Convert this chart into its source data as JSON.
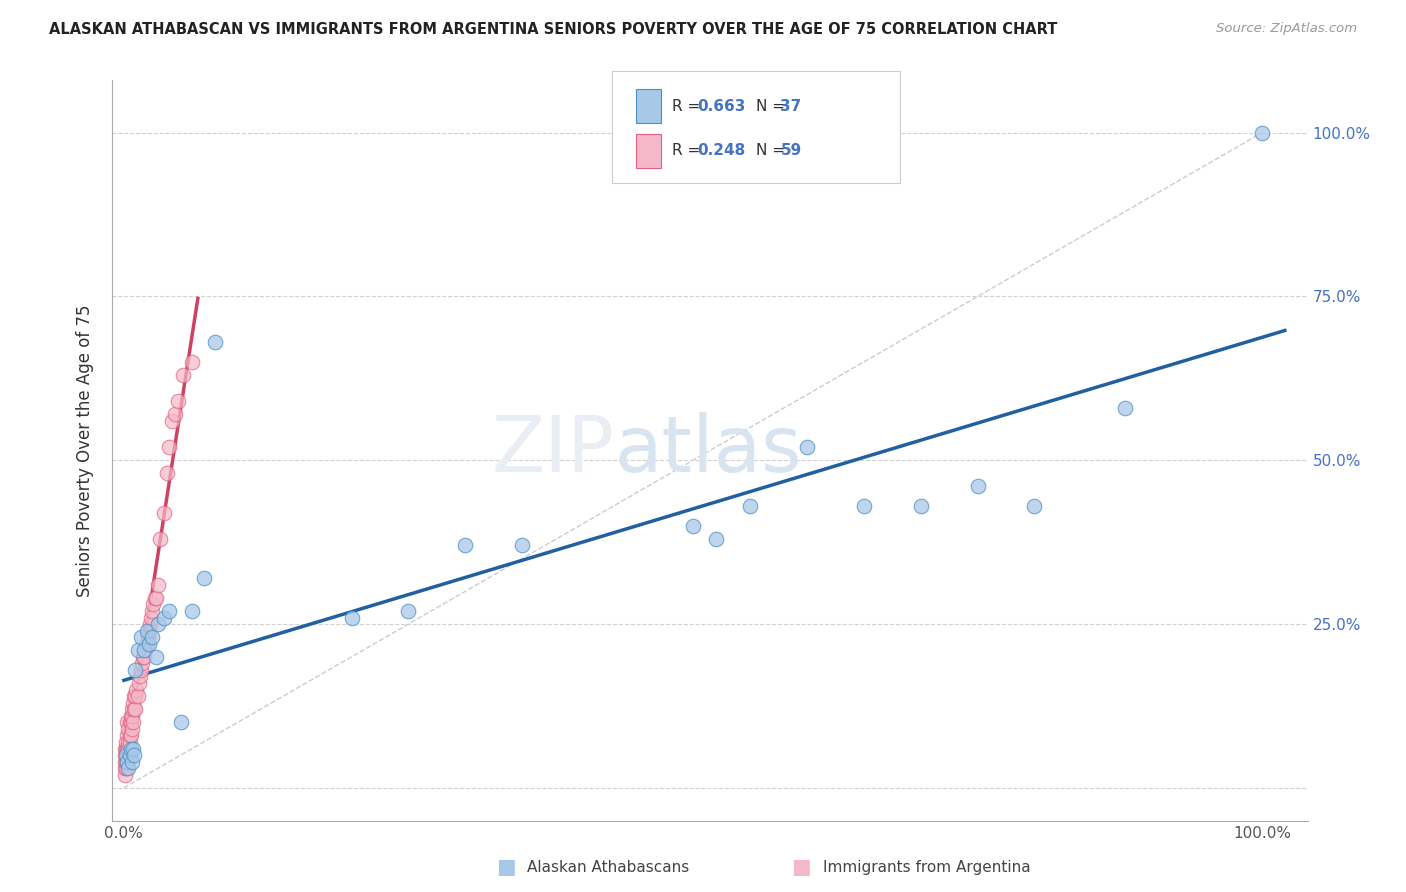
{
  "title": "ALASKAN ATHABASCAN VS IMMIGRANTS FROM ARGENTINA SENIORS POVERTY OVER THE AGE OF 75 CORRELATION CHART",
  "source": "Source: ZipAtlas.com",
  "ylabel": "Seniors Poverty Over the Age of 75",
  "color_blue": "#a8c8e8",
  "color_pink": "#f4b8c8",
  "color_blue_dark": "#4a90c4",
  "color_pink_dark": "#e06080",
  "color_blue_line": "#2060a0",
  "color_pink_line": "#d04060",
  "color_diag": "#cccccc",
  "blue_x": [
    0.002,
    0.003,
    0.004,
    0.005,
    0.006,
    0.007,
    0.008,
    0.009,
    0.01,
    0.012,
    0.015,
    0.018,
    0.02,
    0.022,
    0.025,
    0.028,
    0.03,
    0.035,
    0.04,
    0.05,
    0.06,
    0.07,
    0.08,
    0.2,
    0.25,
    0.3,
    0.35,
    0.5,
    0.52,
    0.55,
    0.6,
    0.65,
    0.7,
    0.75,
    0.8,
    0.88,
    1.0
  ],
  "blue_y": [
    0.05,
    0.04,
    0.03,
    0.05,
    0.06,
    0.04,
    0.06,
    0.05,
    0.18,
    0.21,
    0.23,
    0.21,
    0.24,
    0.22,
    0.23,
    0.2,
    0.25,
    0.26,
    0.27,
    0.1,
    0.27,
    0.32,
    0.68,
    0.26,
    0.27,
    0.37,
    0.37,
    0.4,
    0.38,
    0.43,
    0.52,
    0.43,
    0.43,
    0.46,
    0.43,
    0.58,
    1.0
  ],
  "pink_x": [
    0.001,
    0.001,
    0.001,
    0.001,
    0.001,
    0.002,
    0.002,
    0.002,
    0.002,
    0.003,
    0.003,
    0.003,
    0.003,
    0.004,
    0.004,
    0.004,
    0.005,
    0.005,
    0.005,
    0.006,
    0.006,
    0.006,
    0.007,
    0.007,
    0.007,
    0.008,
    0.008,
    0.009,
    0.009,
    0.01,
    0.01,
    0.011,
    0.012,
    0.013,
    0.014,
    0.015,
    0.016,
    0.017,
    0.018,
    0.019,
    0.02,
    0.021,
    0.022,
    0.023,
    0.024,
    0.025,
    0.026,
    0.027,
    0.028,
    0.03,
    0.032,
    0.035,
    0.038,
    0.04,
    0.042,
    0.045,
    0.048,
    0.052,
    0.06
  ],
  "pink_y": [
    0.02,
    0.03,
    0.04,
    0.05,
    0.06,
    0.03,
    0.04,
    0.06,
    0.07,
    0.04,
    0.06,
    0.08,
    0.1,
    0.06,
    0.07,
    0.09,
    0.07,
    0.08,
    0.1,
    0.08,
    0.1,
    0.11,
    0.09,
    0.11,
    0.12,
    0.1,
    0.13,
    0.12,
    0.14,
    0.12,
    0.14,
    0.15,
    0.14,
    0.16,
    0.17,
    0.18,
    0.19,
    0.2,
    0.2,
    0.21,
    0.22,
    0.23,
    0.24,
    0.25,
    0.26,
    0.27,
    0.28,
    0.29,
    0.29,
    0.31,
    0.38,
    0.42,
    0.48,
    0.52,
    0.56,
    0.57,
    0.59,
    0.63,
    0.65
  ]
}
